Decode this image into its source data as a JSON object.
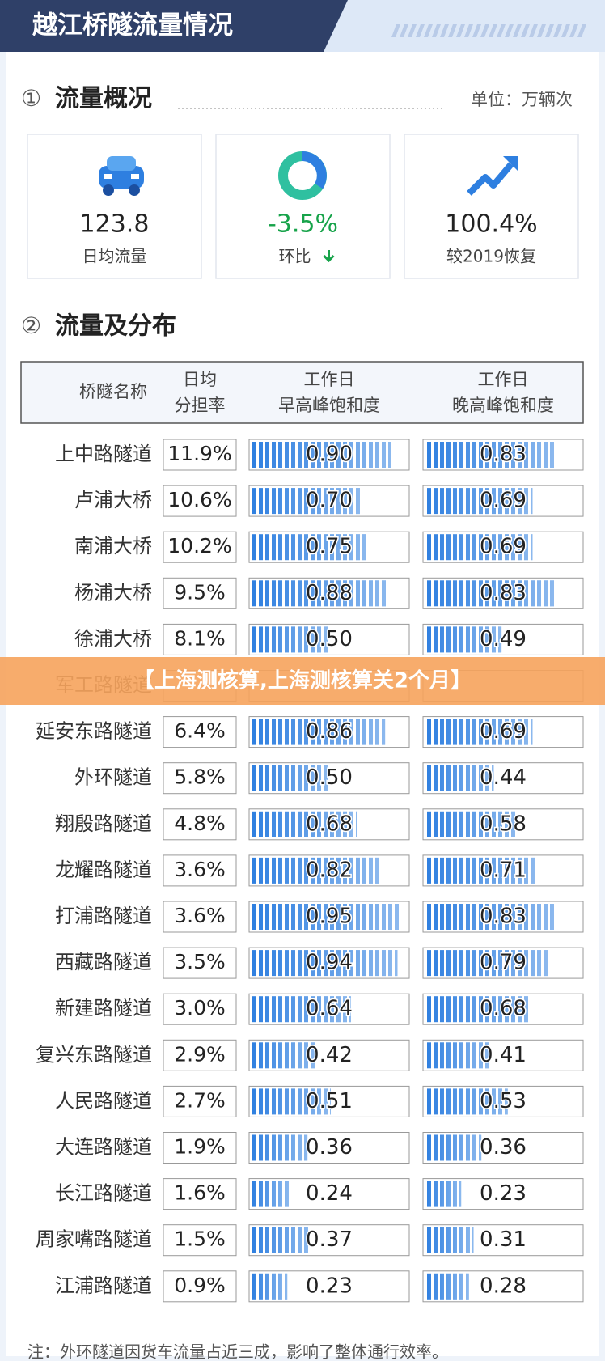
{
  "header": {
    "title": "越江桥隧流量情况"
  },
  "overview": {
    "number": "①",
    "title": "流量概况",
    "unit": "单位：万辆次",
    "cards": [
      {
        "value": "123.8",
        "label": "日均流量"
      },
      {
        "value": "-3.5%",
        "label": "环比"
      },
      {
        "value": "100.4%",
        "label": "较2019恢复"
      }
    ]
  },
  "distribution": {
    "number": "②",
    "title": "流量及分布",
    "columns": [
      [
        "桥隧名称"
      ],
      [
        "日均",
        "分担率"
      ],
      [
        "工作日",
        "早高峰饱和度"
      ],
      [
        "工作日",
        "晚高峰饱和度"
      ]
    ],
    "rows": [
      {
        "name": "上中路隧道",
        "share": "11.9%",
        "morning": {
          "value": 0.9,
          "label": "0.90"
        },
        "evening": {
          "value": 0.83,
          "label": "0.83"
        }
      },
      {
        "name": "卢浦大桥",
        "share": "10.6%",
        "morning": {
          "value": 0.7,
          "label": "0.70"
        },
        "evening": {
          "value": 0.69,
          "label": "0.69"
        }
      },
      {
        "name": "南浦大桥",
        "share": "10.2%",
        "morning": {
          "value": 0.75,
          "label": "0.75"
        },
        "evening": {
          "value": 0.69,
          "label": "0.69"
        }
      },
      {
        "name": "杨浦大桥",
        "share": "9.5%",
        "morning": {
          "value": 0.88,
          "label": "0.88"
        },
        "evening": {
          "value": 0.83,
          "label": "0.83"
        }
      },
      {
        "name": "徐浦大桥",
        "share": "8.1%",
        "morning": {
          "value": 0.5,
          "label": "0.50"
        },
        "evening": {
          "value": 0.49,
          "label": "0.49"
        }
      },
      {
        "name": "军工路隧道",
        "share": null,
        "morning": null,
        "evening": null
      },
      {
        "name": "延安东路隧道",
        "share": "6.4%",
        "morning": {
          "value": 0.86,
          "label": "0.86"
        },
        "evening": {
          "value": 0.69,
          "label": "0.69"
        }
      },
      {
        "name": "外环隧道",
        "share": "5.8%",
        "morning": {
          "value": 0.5,
          "label": "0.50"
        },
        "evening": {
          "value": 0.44,
          "label": "0.44"
        }
      },
      {
        "name": "翔殷路隧道",
        "share": "4.8%",
        "morning": {
          "value": 0.68,
          "label": "0.68"
        },
        "evening": {
          "value": 0.58,
          "label": "0.58"
        }
      },
      {
        "name": "龙耀路隧道",
        "share": "3.6%",
        "morning": {
          "value": 0.82,
          "label": "0.82"
        },
        "evening": {
          "value": 0.71,
          "label": "0.71"
        }
      },
      {
        "name": "打浦路隧道",
        "share": "3.6%",
        "morning": {
          "value": 0.95,
          "label": "0.95"
        },
        "evening": {
          "value": 0.83,
          "label": "0.83"
        }
      },
      {
        "name": "西藏路隧道",
        "share": "3.5%",
        "morning": {
          "value": 0.94,
          "label": "0.94"
        },
        "evening": {
          "value": 0.79,
          "label": "0.79"
        }
      },
      {
        "name": "新建路隧道",
        "share": "3.0%",
        "morning": {
          "value": 0.64,
          "label": "0.64"
        },
        "evening": {
          "value": 0.68,
          "label": "0.68"
        }
      },
      {
        "name": "复兴东路隧道",
        "share": "2.9%",
        "morning": {
          "value": 0.42,
          "label": "0.42"
        },
        "evening": {
          "value": 0.41,
          "label": "0.41"
        }
      },
      {
        "name": "人民路隧道",
        "share": "2.7%",
        "morning": {
          "value": 0.51,
          "label": "0.51"
        },
        "evening": {
          "value": 0.53,
          "label": "0.53"
        }
      },
      {
        "name": "大连路隧道",
        "share": "1.9%",
        "morning": {
          "value": 0.36,
          "label": "0.36"
        },
        "evening": {
          "value": 0.36,
          "label": "0.36"
        }
      },
      {
        "name": "长江路隧道",
        "share": "1.6%",
        "morning": {
          "value": 0.24,
          "label": "0.24"
        },
        "evening": {
          "value": 0.23,
          "label": "0.23"
        }
      },
      {
        "name": "周家嘴路隧道",
        "share": "1.5%",
        "morning": {
          "value": 0.37,
          "label": "0.37"
        },
        "evening": {
          "value": 0.31,
          "label": "0.31"
        }
      },
      {
        "name": "江浦路隧道",
        "share": "0.9%",
        "morning": {
          "value": 0.23,
          "label": "0.23"
        },
        "evening": {
          "value": 0.28,
          "label": "0.28"
        }
      }
    ]
  },
  "banner": "【上海测核算,上海测核算关2个月】",
  "footnote": "注：外环隧道因货车流量占近三成，影响了整体通行效率。"
}
